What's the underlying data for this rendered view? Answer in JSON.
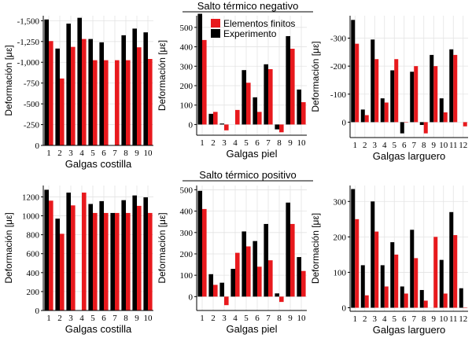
{
  "colors": {
    "fe": "#e8191d",
    "exp": "#000000",
    "grid": "#e3e3e3"
  },
  "sections": {
    "top": "Salto térmico negativo",
    "bottom": "Salto térmico positivo"
  },
  "legend": {
    "fe": "Elementos finitos",
    "exp": "Experimento"
  },
  "chart_data": [
    {
      "id": "neg-costilla",
      "type": "bar",
      "section": "Salto térmico negativo",
      "xlabel": "Galgas costilla",
      "ylabel": "Deformación [με]",
      "ylim": [
        0,
        1560
      ],
      "yticks": [
        0,
        250,
        500,
        750,
        1000,
        1250,
        1500
      ],
      "ytick_labels": [
        "0",
        "-250",
        "-500",
        "-750",
        "-1,000",
        "-1,250",
        "-1,500"
      ],
      "categories": [
        "1",
        "2",
        "3",
        "4",
        "5",
        "6",
        "7",
        "8",
        "9",
        "10"
      ],
      "series": [
        {
          "name": "Experimento",
          "values": [
            1515,
            1165,
            1465,
            1535,
            1280,
            1240,
            null,
            1325,
            1405,
            1360
          ]
        },
        {
          "name": "Elementos finitos",
          "values": [
            1255,
            805,
            1185,
            1280,
            1025,
            1025,
            1025,
            1025,
            1180,
            1040
          ]
        }
      ]
    },
    {
      "id": "neg-piel",
      "type": "bar",
      "section": "Salto térmico negativo",
      "xlabel": "Galgas piel",
      "ylabel": "Deformación [με]",
      "ylim": [
        -55,
        560
      ],
      "yticks": [
        0,
        100,
        200,
        300,
        400,
        500
      ],
      "ytick_labels": [
        "0",
        "100",
        "200",
        "300",
        "400",
        "500"
      ],
      "categories": [
        "1",
        "2",
        "3",
        "4",
        "5",
        "6",
        "7",
        "8",
        "9",
        "10"
      ],
      "series": [
        {
          "name": "Experimento",
          "values": [
            570,
            55,
            5,
            null,
            280,
            140,
            310,
            -25,
            455,
            180
          ]
        },
        {
          "name": "Elementos finitos",
          "values": [
            435,
            65,
            -30,
            75,
            215,
            65,
            285,
            -40,
            390,
            115
          ]
        }
      ]
    },
    {
      "id": "neg-larguero",
      "type": "bar",
      "section": "Salto térmico negativo",
      "xlabel": "Galgas larguero",
      "ylabel": "Deformación [με]",
      "ylim": [
        -55,
        380
      ],
      "yticks": [
        0,
        100,
        200,
        300
      ],
      "ytick_labels": [
        "0",
        "-100",
        "-200",
        "-300"
      ],
      "categories": [
        "1",
        "2",
        "3",
        "4",
        "5",
        "6",
        "7",
        "8",
        "9",
        "10",
        "11",
        "12"
      ],
      "series": [
        {
          "name": "Experimento",
          "values": [
            365,
            45,
            295,
            85,
            185,
            -40,
            180,
            -10,
            240,
            85,
            260,
            null
          ]
        },
        {
          "name": "Elementos finitos",
          "values": [
            280,
            25,
            225,
            70,
            225,
            0,
            200,
            -40,
            200,
            35,
            240,
            -15
          ]
        }
      ]
    },
    {
      "id": "pos-costilla",
      "type": "bar",
      "section": "Salto térmico positivo",
      "xlabel": "Galgas costilla",
      "ylabel": "Deformación [με]",
      "ylim": [
        0,
        1320
      ],
      "yticks": [
        0,
        200,
        400,
        600,
        800,
        1000,
        1200
      ],
      "ytick_labels": [
        "0",
        "200",
        "400",
        "600",
        "800",
        "1000",
        "1200"
      ],
      "categories": [
        "1",
        "2",
        "3",
        "4",
        "5",
        "6",
        "7",
        "8",
        "9",
        "10"
      ],
      "series": [
        {
          "name": "Experimento",
          "values": [
            1275,
            970,
            1245,
            null,
            1125,
            1155,
            1030,
            1165,
            1215,
            1195
          ]
        },
        {
          "name": "Elementos finitos",
          "values": [
            1160,
            810,
            1110,
            1245,
            1030,
            1030,
            1030,
            1030,
            1105,
            1030
          ]
        }
      ]
    },
    {
      "id": "pos-piel",
      "type": "bar",
      "section": "Salto térmico positivo",
      "xlabel": "Galgas piel",
      "ylabel": "Deformación [με]",
      "ylim": [
        -65,
        520
      ],
      "yticks": [
        0,
        100,
        200,
        300,
        400,
        500
      ],
      "ytick_labels": [
        "0",
        "100",
        "200",
        "300",
        "400",
        "500"
      ],
      "categories": [
        "1",
        "2",
        "3",
        "4",
        "5",
        "6",
        "7",
        "8",
        "9",
        "10"
      ],
      "series": [
        {
          "name": "Experimento",
          "values": [
            495,
            105,
            65,
            130,
            305,
            260,
            340,
            15,
            440,
            185
          ]
        },
        {
          "name": "Elementos finitos",
          "values": [
            410,
            55,
            -40,
            205,
            235,
            140,
            170,
            -25,
            340,
            120
          ]
        }
      ]
    },
    {
      "id": "pos-larguero",
      "type": "bar",
      "section": "Salto térmico positivo",
      "xlabel": "Galgas larguero",
      "ylabel": "Deformación [με]",
      "ylim": [
        -10,
        345
      ],
      "yticks": [
        0,
        100,
        200,
        300
      ],
      "ytick_labels": [
        "0",
        "100",
        "200",
        "300"
      ],
      "categories": [
        "1",
        "2",
        "3",
        "4",
        "5",
        "6",
        "7",
        "8",
        "9",
        "10",
        "11",
        "12"
      ],
      "series": [
        {
          "name": "Experimento",
          "values": [
            335,
            120,
            300,
            120,
            185,
            60,
            220,
            50,
            null,
            135,
            270,
            55
          ]
        },
        {
          "name": "Elementos finitos",
          "values": [
            250,
            35,
            215,
            60,
            150,
            40,
            140,
            20,
            200,
            40,
            205,
            0
          ]
        }
      ]
    }
  ]
}
